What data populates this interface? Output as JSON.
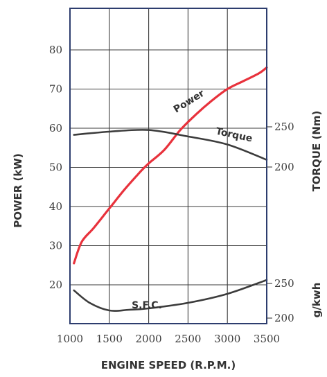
{
  "chart_data": {
    "type": "line",
    "xlabel": "ENGINE SPEED (R.P.M.)",
    "ylabel_left": "POWER (kW)",
    "ylabel_right_torque": "TORQUE (Nm)",
    "ylabel_right_sfc": "g/kwh",
    "x_ticks": [
      "1000",
      "1500",
      "2000",
      "2500",
      "3000",
      "3500"
    ],
    "y_ticks_left": [
      "20",
      "30",
      "40",
      "50",
      "60",
      "70",
      "80"
    ],
    "y_ticks_torque": [
      "200",
      "250"
    ],
    "y_ticks_sfc": [
      "200",
      "250"
    ],
    "xlim": [
      1000,
      3500
    ],
    "ylim_left": [
      10,
      90
    ],
    "grid": true,
    "series": [
      {
        "name": "Power",
        "axis": "power",
        "color": "#e8323c",
        "x": [
          1050,
          1150,
          1300,
          1500,
          1700,
          1900,
          2000,
          2200,
          2400,
          2600,
          2800,
          3000,
          3200,
          3400,
          3500
        ],
        "y": [
          25.5,
          31,
          34.5,
          39.5,
          44.5,
          49,
          51,
          54.5,
          59.5,
          63.5,
          67,
          70,
          72,
          74,
          75.5
        ]
      },
      {
        "name": "Torque",
        "axis": "torque",
        "color": "#3c3c3c",
        "x": [
          1050,
          1500,
          2000,
          2500,
          3000,
          3500
        ],
        "y": [
          240,
          244,
          246,
          238,
          228,
          209
        ]
      },
      {
        "name": "S.F.C.",
        "axis": "sfc",
        "color": "#3c3c3c",
        "x": [
          1050,
          1250,
          1500,
          1750,
          2000,
          2500,
          3000,
          3500
        ],
        "y": [
          240,
          222,
          211,
          212,
          214,
          222,
          235,
          255
        ]
      }
    ]
  }
}
